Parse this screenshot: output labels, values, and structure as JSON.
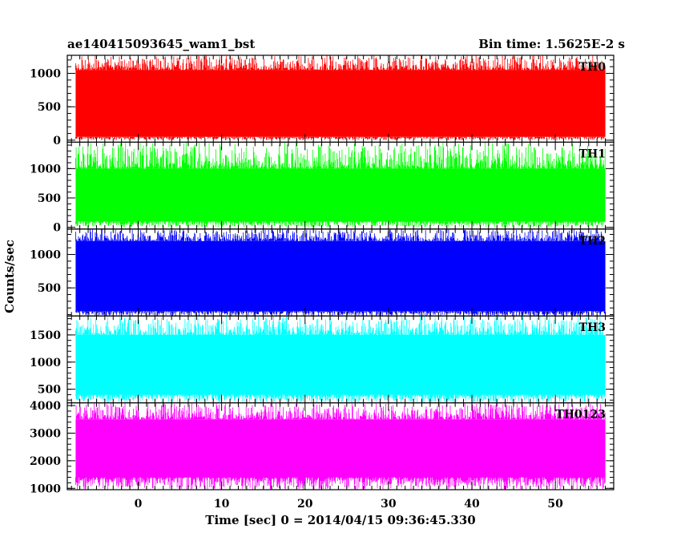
{
  "header": {
    "title": "ae140415093645_wam1_bst",
    "bin_time": "Bin time: 1.5625E-2 s"
  },
  "chart_data": {
    "type": "line",
    "xlabel": "Time [sec] 0 = 2014/04/15 09:36:45.330",
    "ylabel": "Counts/sec",
    "xlim": [
      -8.5,
      57
    ],
    "data_x_range": [
      -7.5,
      56
    ],
    "bin_time_s": 0.015625,
    "x_ticks": [
      0,
      10,
      20,
      30,
      40,
      50
    ],
    "x_tick_labels": [
      "0",
      "10",
      "20",
      "30",
      "40",
      "50"
    ],
    "grid": false,
    "panels": [
      {
        "name": "TH0",
        "color": "#ff0000",
        "ylim": [
          -30,
          1270
        ],
        "y_ticks": [
          0,
          500,
          1000
        ],
        "y_tick_labels": [
          "0",
          "500",
          "1000"
        ],
        "band": [
          50,
          1050
        ],
        "spike_range": [
          1050,
          1270
        ],
        "dip_range": [
          0,
          80
        ],
        "mean": 550
      },
      {
        "name": "TH1",
        "color": "#00ff00",
        "ylim": [
          -30,
          1450
        ],
        "y_ticks": [
          0,
          500,
          1000
        ],
        "y_tick_labels": [
          "0",
          "500",
          "1000"
        ],
        "band": [
          100,
          1000
        ],
        "spike_range": [
          1000,
          1450
        ],
        "dip_range": [
          0,
          100
        ],
        "mean": 550
      },
      {
        "name": "TH2",
        "color": "#0000ff",
        "ylim": [
          80,
          1380
        ],
        "y_ticks": [
          500,
          1000
        ],
        "y_tick_labels": [
          "500",
          "1000"
        ],
        "band": [
          150,
          1200
        ],
        "spike_range": [
          1200,
          1380
        ],
        "dip_range": [
          80,
          150
        ],
        "mean": 650
      },
      {
        "name": "TH3",
        "color": "#00ffff",
        "ylim": [
          250,
          1850
        ],
        "y_ticks": [
          500,
          1000,
          1500
        ],
        "y_tick_labels": [
          "500",
          "1000",
          "1500"
        ],
        "band": [
          400,
          1500
        ],
        "spike_range": [
          1500,
          1850
        ],
        "dip_range": [
          250,
          400
        ],
        "mean": 950
      },
      {
        "name": "TH0123",
        "color": "#ff00ff",
        "ylim": [
          950,
          4100
        ],
        "y_ticks": [
          1000,
          2000,
          3000,
          4000
        ],
        "y_tick_labels": [
          "1000",
          "2000",
          "3000",
          "4000"
        ],
        "band": [
          1400,
          3500
        ],
        "spike_range": [
          3500,
          4100
        ],
        "dip_range": [
          950,
          1400
        ],
        "mean": 2400
      }
    ]
  }
}
